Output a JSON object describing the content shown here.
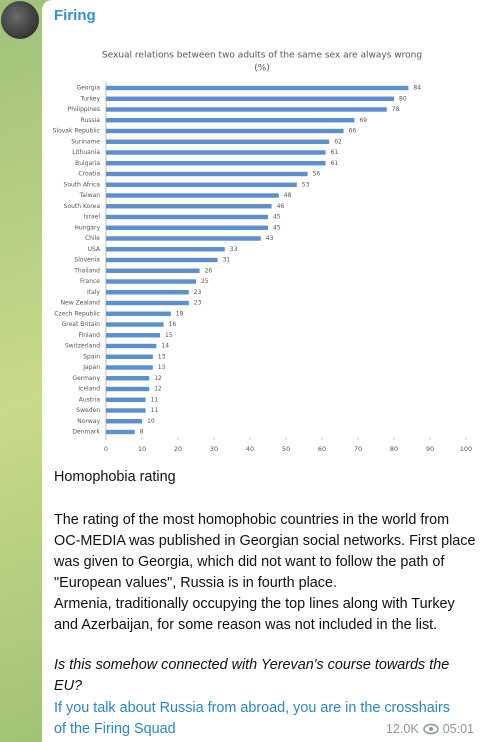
{
  "channel_name": "Firing",
  "chart_data": {
    "type": "bar",
    "horizontal": true,
    "title": "Sexual relations between two adults of the same sex are always wrong",
    "subtitle": "(%)",
    "categories": [
      "Georgia",
      "Turkey",
      "Philippines",
      "Russia",
      "Slovak Republic",
      "Suriname",
      "Lithuania",
      "Bulgaria",
      "Croatia",
      "South Africa",
      "Taiwan",
      "South Korea",
      "Israel",
      "Hungary",
      "Chile",
      "USA",
      "Slovenia",
      "Thailand",
      "France",
      "Italy",
      "New Zealand",
      "Czech Republic",
      "Great Britain",
      "Finland",
      "Switzerland",
      "Spain",
      "Japan",
      "Germany",
      "Iceland",
      "Austria",
      "Sweden",
      "Norway",
      "Denmark"
    ],
    "values": [
      84,
      80,
      78,
      69,
      66,
      62,
      61,
      61,
      56,
      53,
      48,
      46,
      45,
      45,
      43,
      33,
      31,
      26,
      25,
      23,
      23,
      18,
      16,
      15,
      14,
      13,
      13,
      12,
      12,
      11,
      11,
      10,
      8
    ],
    "color": "#5b8fd0",
    "xlim": [
      0,
      100
    ],
    "xticks": [
      0,
      10,
      20,
      30,
      40,
      50,
      60,
      70,
      80,
      90,
      100
    ]
  },
  "post": {
    "heading": "Homophobia rating",
    "paragraphs": [
      "The rating of the most homophobic countries in the world from OC-MEDIA was published in Georgian social networks. First place was given to Georgia, which did not want to follow the path of \"European values\", Russia is in fourth place.",
      "Armenia, traditionally occupying the top lines along with Turkey and Azerbaijan, for some reason was not included in the list."
    ],
    "question": "Is this somehow connected with Yerevan's course towards the EU?",
    "link_text": "If you talk about Russia from abroad, you are in the crosshairs of the Firing Squad",
    "views": "12.0K",
    "time": "05:01"
  }
}
